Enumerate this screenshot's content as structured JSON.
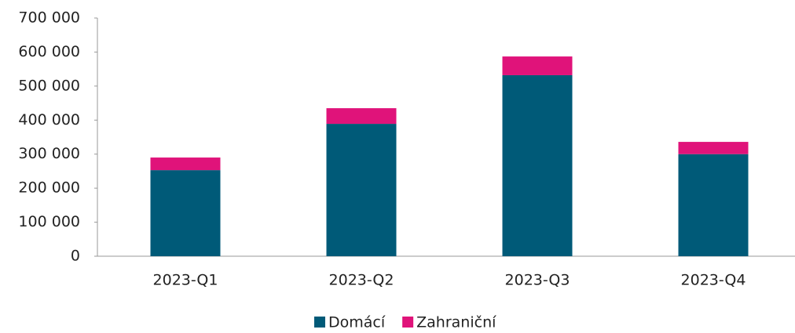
{
  "chart_data": {
    "type": "stacked_bar",
    "categories": [
      "2023-Q1",
      "2023-Q2",
      "2023-Q3",
      "2023-Q4"
    ],
    "series": [
      {
        "name": "Domácí",
        "color": "#005a78",
        "values": [
          253000,
          389000,
          532000,
          300000
        ]
      },
      {
        "name": "Zahraniční",
        "color": "#e0137a",
        "values": [
          37000,
          46000,
          55000,
          36000
        ]
      }
    ],
    "ylim": [
      0,
      700000
    ],
    "yticks": [
      0,
      {
        "value": 100000,
        "label": "100 000"
      },
      {
        "value": 200000,
        "label": "200 000"
      },
      {
        "value": 300000,
        "label": "300 000"
      },
      {
        "value": 400000,
        "label": "400 000"
      },
      {
        "value": 500000,
        "label": "500 000"
      },
      {
        "value": 600000,
        "label": "600 000"
      },
      {
        "value": 700000,
        "label": "700 000"
      }
    ],
    "grid": false,
    "legend": "bottom"
  }
}
